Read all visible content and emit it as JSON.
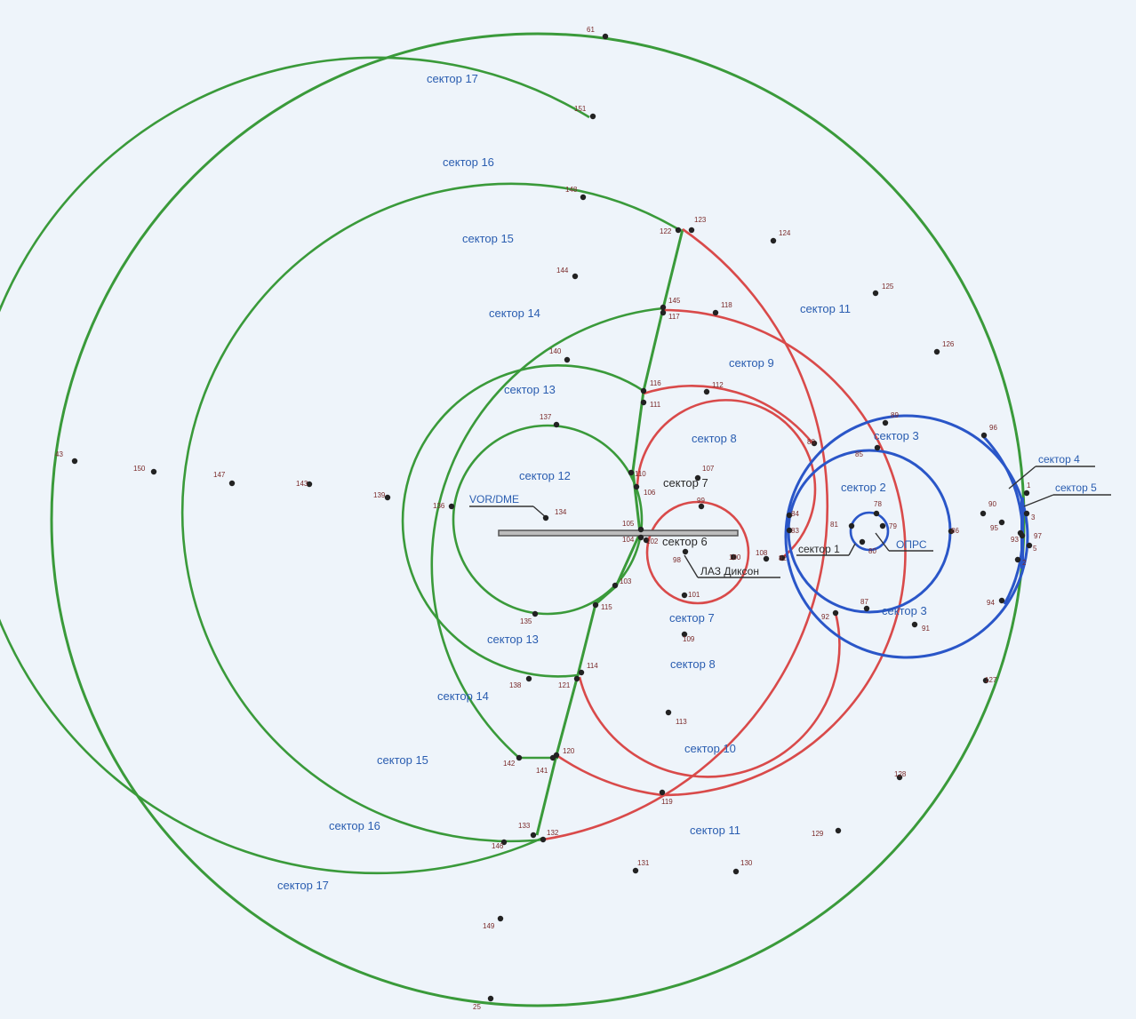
{
  "diagram": {
    "colors": {
      "green": "#3a9a3a",
      "red": "#d94a4a",
      "blue": "#2a56c8",
      "dark": "#222222",
      "label_blue": "#2a5db0",
      "point_label": "#7a2a2a",
      "background": "#eef4fa"
    },
    "sector_labels": [
      "сектор 17",
      "сектор 16",
      "сектор 15",
      "сектор 14",
      "сектор 13",
      "сектор 12",
      "сектор 11",
      "сектор 9",
      "сектор 8",
      "сектор 7",
      "сектор 6",
      "сектор 7",
      "сектор 13",
      "сектор 14",
      "сектор 15",
      "сектор 16",
      "сектор 17",
      "сектор 8",
      "сектор 10",
      "сектор 11",
      "сектор 3",
      "сектор 2",
      "сектор 3",
      "сектор 1"
    ],
    "callouts": {
      "vor_dme": "VOR/DME",
      "laz": "ЛАЗ Диксон",
      "oprs": "ОПРС",
      "sector4": "сектор 4",
      "sector5": "сектор 5",
      "sector1": "сектор 1"
    },
    "point_numbers": [
      "61",
      "151",
      "148",
      "123",
      "122",
      "124",
      "125",
      "145",
      "144",
      "117",
      "118",
      "126",
      "140",
      "116",
      "111",
      "112",
      "96",
      "89",
      "88",
      "85",
      "137",
      "110",
      "107",
      "106",
      "99",
      "105",
      "104",
      "102",
      "100",
      "108",
      "98",
      "101",
      "103",
      "115",
      "134",
      "136",
      "139",
      "143",
      "147",
      "150",
      "43",
      "84",
      "83",
      "82",
      "81",
      "78",
      "79",
      "80",
      "86",
      "90",
      "95",
      "93",
      "97",
      "1",
      "3",
      "5",
      "2",
      "87",
      "92",
      "91",
      "94",
      "127",
      "113",
      "109",
      "114",
      "121",
      "138",
      "135",
      "142",
      "141",
      "120",
      "119",
      "128",
      "129",
      "130",
      "131",
      "133",
      "132",
      "146",
      "149",
      "25"
    ]
  }
}
